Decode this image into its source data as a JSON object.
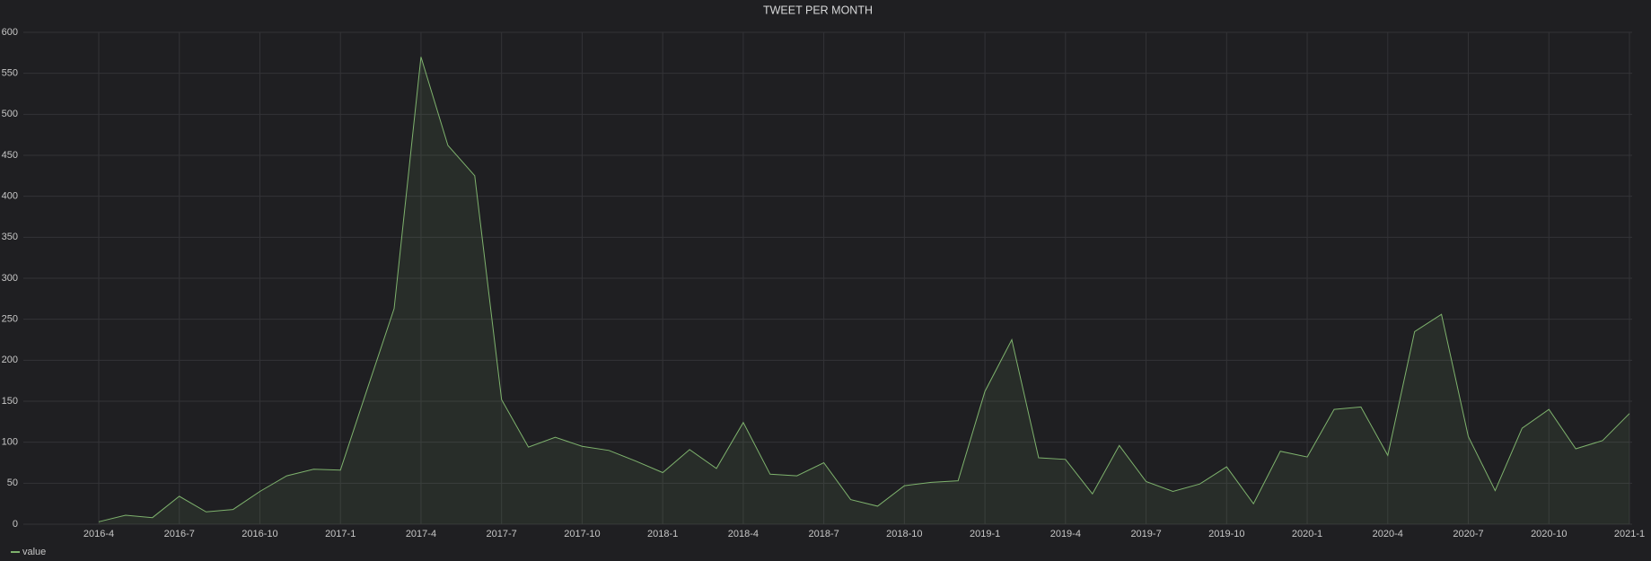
{
  "chart_data": {
    "type": "line",
    "title": "TWEET PER MONTH",
    "x": [
      "2016-4",
      "2016-5",
      "2016-6",
      "2016-7",
      "2016-8",
      "2016-9",
      "2016-10",
      "2016-11",
      "2016-12",
      "2017-1",
      "2017-2",
      "2017-3",
      "2017-4",
      "2017-5",
      "2017-6",
      "2017-7",
      "2017-8",
      "2017-9",
      "2017-10",
      "2017-11",
      "2017-12",
      "2018-1",
      "2018-2",
      "2018-3",
      "2018-4",
      "2018-5",
      "2018-6",
      "2018-7",
      "2018-8",
      "2018-9",
      "2018-10",
      "2018-11",
      "2018-12",
      "2019-1",
      "2019-2",
      "2019-3",
      "2019-4",
      "2019-5",
      "2019-6",
      "2019-7",
      "2019-8",
      "2019-9",
      "2019-10",
      "2019-11",
      "2019-12",
      "2020-1",
      "2020-2",
      "2020-3",
      "2020-4",
      "2020-5",
      "2020-6",
      "2020-7",
      "2020-8",
      "2020-9",
      "2020-10",
      "2020-11",
      "2020-12",
      "2021-1"
    ],
    "series": [
      {
        "name": "value",
        "color": "#7eb26d",
        "values": [
          3,
          11,
          8,
          34,
          15,
          18,
          40,
          59,
          67,
          66,
          165,
          263,
          570,
          462,
          425,
          152,
          94,
          106,
          95,
          90,
          77,
          63,
          91,
          68,
          124,
          61,
          59,
          75,
          30,
          22,
          47,
          51,
          53,
          162,
          225,
          81,
          79,
          37,
          96,
          52,
          40,
          49,
          70,
          25,
          89,
          82,
          140,
          143,
          84,
          235,
          256,
          107,
          41,
          117,
          140,
          92,
          102,
          135
        ]
      }
    ],
    "xticks": [
      "2016-4",
      "2016-7",
      "2016-10",
      "2017-1",
      "2017-4",
      "2017-7",
      "2017-10",
      "2018-1",
      "2018-4",
      "2018-7",
      "2018-10",
      "2019-1",
      "2019-4",
      "2019-7",
      "2019-10",
      "2020-1",
      "2020-4",
      "2020-7",
      "2020-10",
      "2021-1"
    ],
    "ylim": [
      0,
      600
    ],
    "yticks": [
      0,
      50,
      100,
      150,
      200,
      250,
      300,
      350,
      400,
      450,
      500,
      550,
      600
    ],
    "grid": true,
    "fill": true,
    "legend": "bottom-left"
  }
}
